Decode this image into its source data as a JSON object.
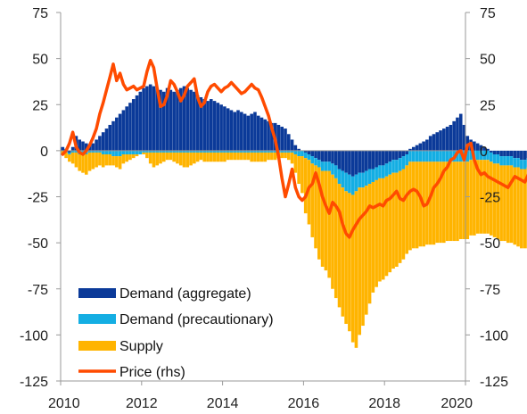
{
  "chart_data": {
    "type": "bar",
    "stacked": true,
    "x_unit": "month",
    "x_start": "2010-01",
    "xlim": [
      2010,
      2020
    ],
    "ylim": [
      -125,
      75
    ],
    "ylim_rhs": [
      -125,
      75
    ],
    "x_ticks": [
      "2010",
      "2012",
      "2014",
      "2016",
      "2018",
      "2020"
    ],
    "y_ticks": [
      "75",
      "50",
      "25",
      "0",
      "-25",
      "-50",
      "-75",
      "-100",
      "-125"
    ],
    "y_ticks_rhs": [
      "75",
      "50",
      "25",
      "0",
      "-25",
      "-50",
      "-75",
      "-100",
      "-125"
    ],
    "grid": false,
    "legend_position": "bottom-left",
    "colors": {
      "demand_aggregate": "#0b3a99",
      "demand_precautionary": "#14aee3",
      "supply": "#ffb400",
      "price": "#ff4b00",
      "axis": "#9a9a9a"
    },
    "series": [
      {
        "name": "Demand (aggregate)",
        "kind": "bar",
        "values": [
          2,
          1,
          -1,
          2,
          8,
          6,
          5,
          4,
          3,
          4,
          6,
          8,
          10,
          12,
          14,
          16,
          18,
          20,
          22,
          24,
          26,
          28,
          30,
          32,
          34,
          35,
          36,
          35,
          34,
          33,
          32,
          34,
          33,
          32,
          33,
          34,
          35,
          34,
          33,
          32,
          30,
          29,
          28,
          27,
          28,
          27,
          26,
          25,
          24,
          23,
          22,
          21,
          22,
          21,
          20,
          19,
          20,
          21,
          19,
          18,
          17,
          16,
          15,
          15,
          14,
          13,
          12,
          9,
          6,
          3,
          1,
          0,
          -1,
          -2,
          -3,
          -4,
          -5,
          -6,
          -6,
          -6,
          -7,
          -8,
          -10,
          -11,
          -12,
          -13,
          -14,
          -13,
          -12,
          -12,
          -11,
          -10,
          -10,
          -9,
          -8,
          -8,
          -7,
          -6,
          -5,
          -5,
          -4,
          -3,
          -2,
          1,
          2,
          3,
          4,
          5,
          6,
          8,
          9,
          10,
          11,
          12,
          13,
          14,
          16,
          18,
          20,
          14,
          8,
          6,
          5,
          4,
          3,
          2,
          1,
          -1,
          -2,
          -2,
          -3,
          -3,
          -3,
          -3,
          -4,
          -4,
          -5,
          -5,
          -4,
          -4,
          -4,
          -4,
          -3,
          -3,
          -3,
          -3,
          -3,
          -2,
          -2,
          -2,
          -2
        ],
        "values_note": ""
      },
      {
        "name": "Demand (precautionary)",
        "kind": "bar",
        "values": [
          0,
          -1,
          -1,
          -1,
          -1,
          -2,
          -2,
          -2,
          -1,
          -1,
          -1,
          -1,
          -2,
          -2,
          -2,
          -3,
          -3,
          -3,
          -2,
          -2,
          -2,
          -2,
          -2,
          -2,
          -1,
          -1,
          -1,
          -1,
          -1,
          -1,
          -1,
          -1,
          -1,
          -1,
          -1,
          -1,
          -1,
          -1,
          -1,
          -1,
          -1,
          -1,
          -1,
          -1,
          -1,
          -1,
          -1,
          -1,
          -1,
          -1,
          -1,
          -1,
          -1,
          -1,
          -1,
          -1,
          -1,
          -1,
          -1,
          -1,
          -1,
          -1,
          -1,
          -1,
          -1,
          -1,
          -1,
          -1,
          -1,
          -2,
          -3,
          -3,
          -3,
          -3,
          -4,
          -4,
          -4,
          -5,
          -5,
          -5,
          -6,
          -7,
          -8,
          -9,
          -10,
          -10,
          -10,
          -9,
          -8,
          -8,
          -8,
          -8,
          -7,
          -7,
          -7,
          -7,
          -7,
          -7,
          -7,
          -7,
          -7,
          -7,
          -6,
          -6,
          -6,
          -6,
          -6,
          -6,
          -6,
          -6,
          -6,
          -6,
          -6,
          -6,
          -6,
          -6,
          -6,
          -6,
          -6,
          -6,
          -6,
          -5,
          -5,
          -5,
          -5,
          -5,
          -5,
          -5,
          -5,
          -5,
          -5,
          -5,
          -5,
          -5,
          -5,
          -5,
          -5,
          -5,
          -5,
          -5,
          -5,
          -5,
          -5,
          -5,
          -5,
          -5,
          -5,
          -5,
          -5,
          -5,
          -5
        ]
      },
      {
        "name": "Supply",
        "kind": "bar",
        "values": [
          -2,
          -3,
          -4,
          -6,
          -8,
          -9,
          -10,
          -11,
          -10,
          -9,
          -8,
          -7,
          -7,
          -6,
          -6,
          -5,
          -6,
          -7,
          -5,
          -4,
          -3,
          -2,
          -1,
          0,
          -1,
          -3,
          -6,
          -8,
          -7,
          -6,
          -5,
          -4,
          -4,
          -5,
          -6,
          -7,
          -8,
          -8,
          -7,
          -6,
          -5,
          -4,
          -5,
          -5,
          -5,
          -5,
          -5,
          -5,
          -5,
          -4,
          -4,
          -4,
          -4,
          -4,
          -4,
          -4,
          -5,
          -5,
          -5,
          -5,
          -5,
          -4,
          -4,
          -4,
          -3,
          -3,
          -3,
          -4,
          -6,
          -10,
          -15,
          -20,
          -30,
          -35,
          -40,
          -45,
          -50,
          -52,
          -54,
          -58,
          -62,
          -65,
          -67,
          -70,
          -72,
          -75,
          -80,
          -85,
          -80,
          -75,
          -70,
          -65,
          -60,
          -58,
          -56,
          -55,
          -54,
          -53,
          -52,
          -51,
          -50,
          -49,
          -48,
          -48,
          -47,
          -47,
          -46,
          -46,
          -45,
          -45,
          -45,
          -44,
          -44,
          -44,
          -43,
          -43,
          -43,
          -43,
          -42,
          -42,
          -42,
          -41,
          -41,
          -40,
          -40,
          -40,
          -40,
          -40,
          -40,
          -41,
          -41,
          -41,
          -42,
          -42,
          -42,
          -43,
          -43,
          -43,
          -44,
          -44,
          -44,
          -45,
          -45,
          -45,
          -45,
          -45,
          -46,
          -46,
          -46,
          -46,
          -46
        ]
      },
      {
        "name": "Price (rhs)",
        "kind": "line",
        "axis": "rhs",
        "values": [
          -2,
          0,
          4,
          10,
          2,
          -1,
          -2,
          0,
          3,
          7,
          12,
          20,
          26,
          33,
          40,
          47,
          38,
          42,
          36,
          33,
          34,
          35,
          33,
          34,
          35,
          43,
          49,
          45,
          34,
          24,
          25,
          30,
          38,
          36,
          32,
          27,
          30,
          35,
          37,
          39,
          29,
          24,
          26,
          32,
          35,
          36,
          34,
          32,
          34,
          35,
          37,
          35,
          33,
          31,
          32,
          34,
          36,
          34,
          33,
          29,
          24,
          19,
          12,
          6,
          -3,
          -15,
          -25,
          -18,
          -10,
          -20,
          -25,
          -27,
          -25,
          -20,
          -18,
          -12,
          -18,
          -25,
          -30,
          -34,
          -28,
          -30,
          -33,
          -40,
          -45,
          -47,
          -43,
          -40,
          -37,
          -35,
          -33,
          -30,
          -31,
          -30,
          -29,
          -30,
          -27,
          -26,
          -24,
          -22,
          -26,
          -27,
          -24,
          -22,
          -21,
          -22,
          -25,
          -30,
          -29,
          -25,
          -20,
          -18,
          -15,
          -11,
          -9,
          -5,
          -4,
          -1,
          0,
          -5,
          3,
          4,
          -5,
          -10,
          -13,
          -12,
          -14,
          -15,
          -16,
          -17,
          -18,
          -19,
          -20,
          -17,
          -14,
          -15,
          -16,
          -17,
          -13,
          -11,
          -12,
          -13,
          -12,
          -13,
          -14,
          -13,
          -13,
          -12,
          -12,
          -12,
          -13
        ]
      }
    ]
  }
}
